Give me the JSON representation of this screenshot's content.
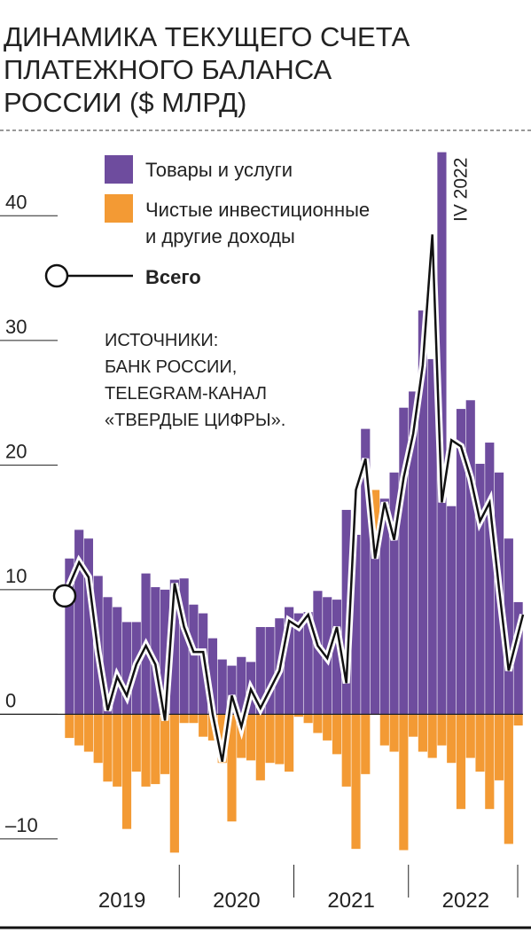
{
  "chart_data": {
    "type": "bar",
    "title_lines": [
      "ДИНАМИКА ТЕКУЩЕГО СЧЕТА",
      "ПЛАТЕЖНОГО БАЛАНСА",
      "РОССИИ ($ МЛРД)"
    ],
    "sources": [
      "ИСТОЧНИКИ:",
      "БАНК РОССИИ,",
      "TELEGRAM-КАНАЛ",
      "«ТВЕРДЫЕ ЦИФРЫ»."
    ],
    "annotation": "IV 2022",
    "categories": [
      null,
      null,
      null,
      null,
      null,
      null,
      null,
      null,
      null,
      null,
      null,
      null,
      null,
      null,
      null,
      null,
      null,
      null,
      null,
      null,
      null,
      null,
      null,
      null,
      null,
      null,
      null,
      null,
      null,
      null,
      null,
      null,
      null,
      null,
      null,
      null,
      null,
      null,
      null,
      null,
      null,
      null,
      null,
      null,
      null,
      null,
      null,
      null
    ],
    "years": [
      "2019",
      "2020",
      "2021",
      "2022"
    ],
    "series": [
      {
        "name": "Товары и услуги",
        "color": "#6e4c9e",
        "values": [
          12.5,
          14.8,
          14.1,
          11.1,
          9.4,
          8.6,
          7.4,
          7.4,
          11.3,
          10.2,
          10.0,
          10.8,
          10.9,
          8.8,
          8.1,
          6.1,
          4.4,
          3.9,
          4.6,
          4.2,
          7.0,
          7.0,
          7.7,
          8.6,
          8.1,
          8.2,
          9.9,
          9.4,
          9.2,
          16.4,
          14.4,
          22.9,
          14.4,
          17.3,
          19.4,
          24.6,
          25.9,
          32.4,
          28.5,
          45.1,
          16.7,
          24.5,
          25.2,
          20.1,
          21.8,
          19.4,
          14.1,
          9.0
        ]
      },
      {
        "name": "Чистые инвестиционные и другие доходы",
        "name_lines": [
          "Чистые инвестиционные",
          "и другие доходы"
        ],
        "color": "#f39a34",
        "values": [
          -1.9,
          -2.5,
          -3.0,
          -3.9,
          -5.4,
          -5.8,
          -9.2,
          -4.6,
          -5.8,
          -5.6,
          -4.8,
          -11.1,
          -0.7,
          -0.7,
          -1.8,
          -2.1,
          -3.9,
          -8.6,
          -3.5,
          -3.7,
          -5.3,
          -3.9,
          -4.0,
          -4.6,
          -0.2,
          -0.7,
          -1.5,
          -2.1,
          -3.2,
          -5.8,
          -10.8,
          -4.8,
          3.6,
          -2.5,
          -3.0,
          -10.9,
          -1.8,
          -3.0,
          -3.5,
          -2.5,
          -3.9,
          -7.6,
          -3.5,
          -4.6,
          -7.6,
          -5.3,
          -10.4,
          -0.9
        ]
      },
      {
        "name": "Всего",
        "type": "line",
        "color": "#111",
        "values": [
          9.5,
          12.2,
          11,
          5,
          0.3,
          3,
          1.5,
          4,
          5.5,
          4,
          -0.5,
          10.5,
          7,
          5,
          5,
          0,
          -3.8,
          1.5,
          -1,
          2,
          0.5,
          2,
          3.5,
          7.5,
          7,
          8,
          5.5,
          4.5,
          7,
          2.5,
          18,
          20.5,
          12.5,
          17,
          14,
          19,
          22.5,
          28,
          38.5,
          17,
          22,
          21.5,
          19,
          15.5,
          17,
          10,
          3.5,
          8
        ]
      }
    ],
    "ylim": [
      -11.5,
      45.5
    ],
    "yticks": [
      {
        "value": -10,
        "label": "–10"
      },
      0,
      10,
      20,
      30,
      40
    ]
  }
}
